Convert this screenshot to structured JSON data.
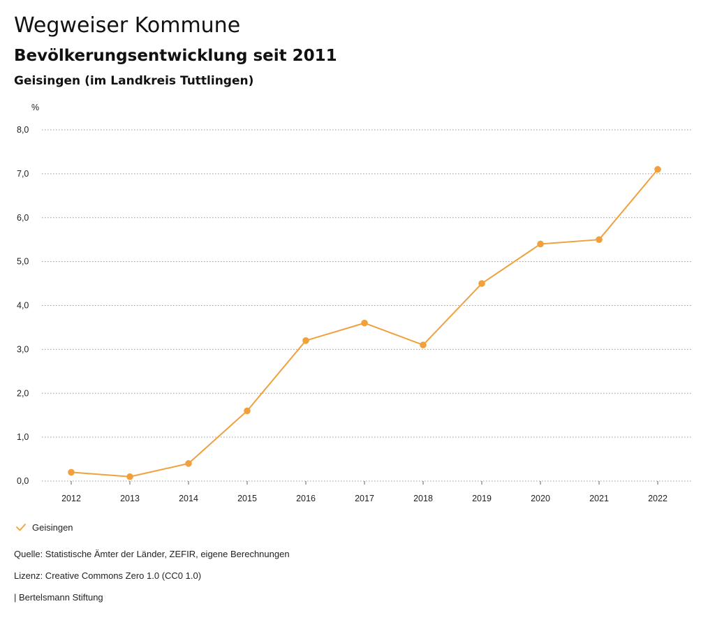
{
  "header": {
    "title": "Wegweiser Kommune",
    "subtitle": "Bevölkerungsentwicklung seit 2011",
    "region": "Geisingen (im Landkreis Tuttlingen)"
  },
  "colors": {
    "series": "#f0a03c",
    "grid": "#999999"
  },
  "chart_data": {
    "type": "line",
    "title": "Bevölkerungsentwicklung seit 2011",
    "ylabel": "%",
    "xlabel": "",
    "categories": [
      "2012",
      "2013",
      "2014",
      "2015",
      "2016",
      "2017",
      "2018",
      "2019",
      "2020",
      "2021",
      "2022"
    ],
    "series": [
      {
        "name": "Geisingen",
        "values": [
          0.2,
          0.1,
          0.4,
          1.6,
          3.2,
          3.6,
          3.1,
          4.5,
          5.4,
          5.5,
          7.1
        ]
      }
    ],
    "ylim": [
      0,
      8
    ],
    "yticks": [
      "0,0",
      "1,0",
      "2,0",
      "3,0",
      "4,0",
      "5,0",
      "6,0",
      "7,0",
      "8,0"
    ],
    "grid": true,
    "legend_position": "bottom-left"
  },
  "legend": {
    "label": "Geisingen",
    "icon": "check-icon"
  },
  "footer": {
    "source": "Quelle: Statistische Ämter der Länder, ZEFIR, eigene Berechnungen",
    "license": "Lizenz: Creative Commons Zero 1.0 (CC0 1.0)",
    "publisher": "| Bertelsmann Stiftung"
  }
}
